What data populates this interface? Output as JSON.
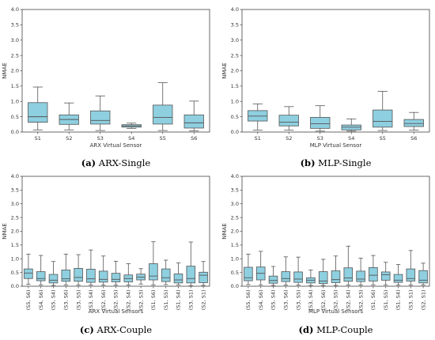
{
  "chart_data": [
    {
      "id": "a",
      "type": "box",
      "caption_letter": "(a)",
      "caption_text": "ARX-Single",
      "xlabel": "ARX Virtual Sensor",
      "ylabel": "NMAE",
      "ylim": [
        0,
        4.0
      ],
      "yticks": [
        "0.0",
        "0.5",
        "1.0",
        "1.5",
        "2.0",
        "2.5",
        "3.0",
        "3.5",
        "4.0"
      ],
      "categories": [
        "S1",
        "S2",
        "S3",
        "S4",
        "S5",
        "S6"
      ],
      "boxes": [
        {
          "wlo": 0.07,
          "q1": 0.32,
          "med": 0.5,
          "q3": 0.96,
          "whi": 1.47
        },
        {
          "wlo": 0.07,
          "q1": 0.25,
          "med": 0.41,
          "q3": 0.56,
          "whi": 0.95
        },
        {
          "wlo": 0.05,
          "q1": 0.26,
          "med": 0.38,
          "q3": 0.69,
          "whi": 1.18
        },
        {
          "wlo": 0.12,
          "q1": 0.16,
          "med": 0.2,
          "q3": 0.24,
          "whi": 0.29
        },
        {
          "wlo": 0.05,
          "q1": 0.26,
          "med": 0.48,
          "q3": 0.88,
          "whi": 1.61
        },
        {
          "wlo": 0.04,
          "q1": 0.13,
          "med": 0.3,
          "q3": 0.56,
          "whi": 1.01
        }
      ],
      "box_color": "#8ecfe0"
    },
    {
      "id": "b",
      "type": "box",
      "caption_letter": "(b)",
      "caption_text": "MLP-Single",
      "xlabel": "MLP Virtual Sensor",
      "ylabel": "NMAE",
      "ylim": [
        0,
        4.0
      ],
      "yticks": [
        "0.0",
        "0.5",
        "1.0",
        "1.5",
        "2.0",
        "2.5",
        "3.0",
        "3.5",
        "4.0"
      ],
      "categories": [
        "S1",
        "S2",
        "S3",
        "S4",
        "S5",
        "S6"
      ],
      "boxes": [
        {
          "wlo": 0.06,
          "q1": 0.36,
          "med": 0.52,
          "q3": 0.7,
          "whi": 0.92
        },
        {
          "wlo": 0.06,
          "q1": 0.2,
          "med": 0.32,
          "q3": 0.55,
          "whi": 0.83
        },
        {
          "wlo": 0.03,
          "q1": 0.12,
          "med": 0.27,
          "q3": 0.48,
          "whi": 0.86
        },
        {
          "wlo": 0.03,
          "q1": 0.07,
          "med": 0.16,
          "q3": 0.23,
          "whi": 0.43
        },
        {
          "wlo": 0.05,
          "q1": 0.16,
          "med": 0.35,
          "q3": 0.72,
          "whi": 1.33
        },
        {
          "wlo": 0.06,
          "q1": 0.18,
          "med": 0.28,
          "q3": 0.41,
          "whi": 0.64
        }
      ],
      "box_color": "#8ecfe0"
    },
    {
      "id": "c",
      "type": "box",
      "caption_letter": "(c)",
      "caption_text": "ARX-Couple",
      "xlabel": "ARX Virtual Sensors",
      "ylabel": "NMAE",
      "ylim": [
        0,
        4.0
      ],
      "yticks": [
        "0.0",
        "0.5",
        "1.0",
        "1.5",
        "2.0",
        "2.5",
        "3.0",
        "3.5",
        "4.0"
      ],
      "categories": [
        "(S5, S6)",
        "(S4, S6)",
        "(S5, S4)",
        "(S3, S6)",
        "(S3, S5)",
        "(S3, S4)",
        "(S2, S6)",
        "(S2, S5)",
        "(S2, S4)",
        "(S2, S3)",
        "(S1, S6)",
        "(S1, S5)",
        "(S1, S4)",
        "(S3, S1)",
        "(S2, S1)"
      ],
      "boxes": [
        {
          "wlo": 0.07,
          "q1": 0.28,
          "med": 0.48,
          "q3": 0.63,
          "whi": 1.17
        },
        {
          "wlo": 0.05,
          "q1": 0.2,
          "med": 0.28,
          "q3": 0.53,
          "whi": 1.12
        },
        {
          "wlo": 0.03,
          "q1": 0.12,
          "med": 0.22,
          "q3": 0.43,
          "whi": 0.9
        },
        {
          "wlo": 0.05,
          "q1": 0.18,
          "med": 0.27,
          "q3": 0.59,
          "whi": 1.17
        },
        {
          "wlo": 0.04,
          "q1": 0.18,
          "med": 0.32,
          "q3": 0.65,
          "whi": 1.15
        },
        {
          "wlo": 0.04,
          "q1": 0.14,
          "med": 0.27,
          "q3": 0.62,
          "whi": 1.32
        },
        {
          "wlo": 0.04,
          "q1": 0.15,
          "med": 0.25,
          "q3": 0.55,
          "whi": 1.1
        },
        {
          "wlo": 0.04,
          "q1": 0.16,
          "med": 0.25,
          "q3": 0.47,
          "whi": 0.91
        },
        {
          "wlo": 0.04,
          "q1": 0.16,
          "med": 0.28,
          "q3": 0.41,
          "whi": 0.82
        },
        {
          "wlo": 0.08,
          "q1": 0.23,
          "med": 0.33,
          "q3": 0.44,
          "whi": 0.64
        },
        {
          "wlo": 0.05,
          "q1": 0.23,
          "med": 0.37,
          "q3": 0.82,
          "whi": 1.62
        },
        {
          "wlo": 0.06,
          "q1": 0.17,
          "med": 0.31,
          "q3": 0.63,
          "whi": 0.95
        },
        {
          "wlo": 0.05,
          "q1": 0.12,
          "med": 0.23,
          "q3": 0.45,
          "whi": 0.85
        },
        {
          "wlo": 0.02,
          "q1": 0.12,
          "med": 0.28,
          "q3": 0.73,
          "whi": 1.61
        },
        {
          "wlo": 0.03,
          "q1": 0.13,
          "med": 0.4,
          "q3": 0.51,
          "whi": 0.9
        }
      ],
      "box_color": "#8ecfe0"
    },
    {
      "id": "d",
      "type": "box",
      "caption_letter": "(d)",
      "caption_text": "MLP-Couple",
      "xlabel": "MLP Virtual Sensors",
      "ylabel": "NMAE",
      "ylim": [
        0,
        4.0
      ],
      "yticks": [
        "0.0",
        "0.5",
        "1.0",
        "1.5",
        "2.0",
        "2.5",
        "3.0",
        "3.5",
        "4.0"
      ],
      "categories": [
        "(S5, S6)",
        "(S4, S6)",
        "(S5, S4)",
        "(S3, S6)",
        "(S3, S5)",
        "(S3, S4)",
        "(S2, S6)",
        "(S2, S5)",
        "(S2, S4)",
        "(S2, S3)",
        "(S1, S6)",
        "(S1, S5)",
        "(S1, S4)",
        "(S3, S1)",
        "(S2, S1)"
      ],
      "boxes": [
        {
          "wlo": 0.06,
          "q1": 0.2,
          "med": 0.31,
          "q3": 0.69,
          "whi": 1.17
        },
        {
          "wlo": 0.05,
          "q1": 0.23,
          "med": 0.47,
          "q3": 0.7,
          "whi": 1.27
        },
        {
          "wlo": 0.03,
          "q1": 0.11,
          "med": 0.21,
          "q3": 0.37,
          "whi": 0.72
        },
        {
          "wlo": 0.04,
          "q1": 0.17,
          "med": 0.28,
          "q3": 0.53,
          "whi": 1.07
        },
        {
          "wlo": 0.04,
          "q1": 0.14,
          "med": 0.26,
          "q3": 0.52,
          "whi": 1.06
        },
        {
          "wlo": 0.03,
          "q1": 0.12,
          "med": 0.22,
          "q3": 0.31,
          "whi": 0.59
        },
        {
          "wlo": 0.03,
          "q1": 0.1,
          "med": 0.19,
          "q3": 0.53,
          "whi": 0.98
        },
        {
          "wlo": 0.03,
          "q1": 0.13,
          "med": 0.24,
          "q3": 0.56,
          "whi": 1.1
        },
        {
          "wlo": 0.04,
          "q1": 0.18,
          "med": 0.3,
          "q3": 0.67,
          "whi": 1.46
        },
        {
          "wlo": 0.04,
          "q1": 0.17,
          "med": 0.26,
          "q3": 0.55,
          "whi": 1.02
        },
        {
          "wlo": 0.05,
          "q1": 0.19,
          "med": 0.4,
          "q3": 0.68,
          "whi": 1.12
        },
        {
          "wlo": 0.05,
          "q1": 0.22,
          "med": 0.42,
          "q3": 0.52,
          "whi": 0.87
        },
        {
          "wlo": 0.04,
          "q1": 0.14,
          "med": 0.22,
          "q3": 0.43,
          "whi": 0.79
        },
        {
          "wlo": 0.04,
          "q1": 0.19,
          "med": 0.28,
          "q3": 0.63,
          "whi": 1.3
        },
        {
          "wlo": 0.04,
          "q1": 0.12,
          "med": 0.22,
          "q3": 0.57,
          "whi": 0.84
        }
      ],
      "box_color": "#8ecfe0"
    }
  ]
}
